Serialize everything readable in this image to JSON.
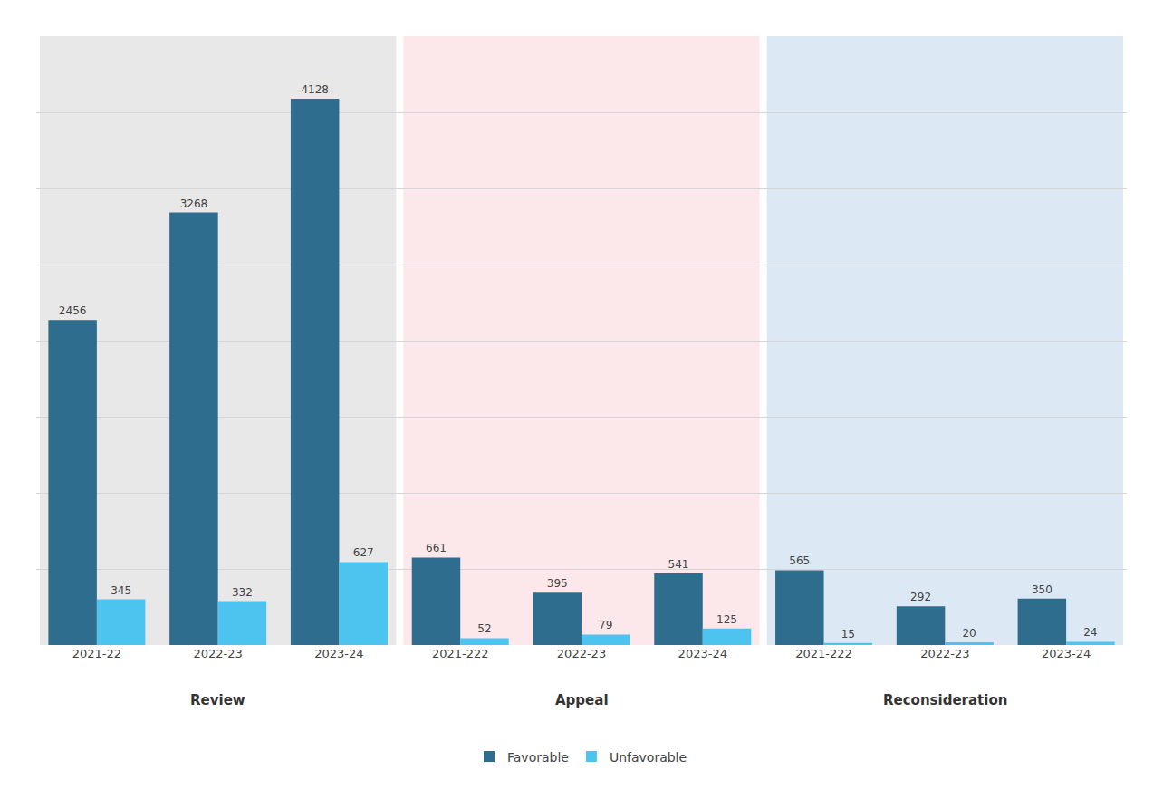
{
  "chart_data": {
    "type": "bar",
    "categories": [
      "2021-22",
      "2022-23",
      "2023-24",
      "2021-222",
      "2022-23",
      "2023-24",
      "2021-222",
      "2022-23",
      "2023-24"
    ],
    "groups": [
      {
        "name": "Review",
        "color": "#e8e8e8"
      },
      {
        "name": "Appeal",
        "color": "#fce8ea"
      },
      {
        "name": "Reconsideration",
        "color": "#dce9f5"
      }
    ],
    "series": [
      {
        "name": "Favorable",
        "color": "#2e6d8e",
        "values": [
          2456,
          3268,
          4128,
          661,
          395,
          541,
          565,
          292,
          350
        ]
      },
      {
        "name": "Unfavorable",
        "color": "#4dc3f0",
        "values": [
          345,
          332,
          627,
          52,
          79,
          125,
          15,
          20,
          24
        ]
      }
    ],
    "ylim": [
      0,
      4600
    ],
    "yticks": [
      0,
      575,
      1150,
      1725,
      2300,
      2875,
      3450,
      4025,
      4600
    ],
    "grid": true,
    "tick_labels": "x",
    "data_labels": true,
    "legend": "bottom"
  }
}
